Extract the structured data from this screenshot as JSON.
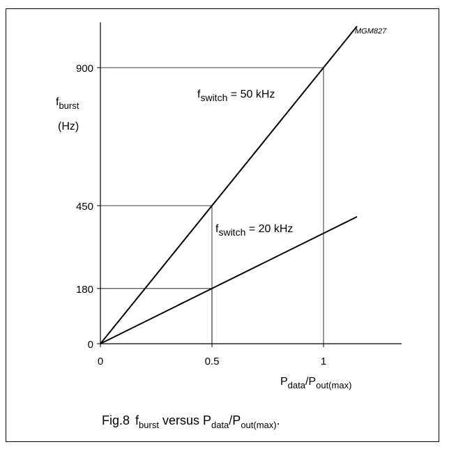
{
  "figure": {
    "code": "MGM827",
    "caption": {
      "prefix": "Fig.8",
      "f": "f",
      "burst": "burst",
      "versus": "versus",
      "P1": "P",
      "data": "data",
      "slash": "/P",
      "outmax": "out(max)",
      "period": "."
    }
  },
  "axes": {
    "y": {
      "f": "f",
      "sub": "burst",
      "unit": "(Hz)"
    },
    "x": {
      "P1": "P",
      "sub1": "data",
      "slash": "/P",
      "sub2": "out(max)"
    }
  },
  "chart_data": {
    "type": "line",
    "xlim": [
      0,
      1.35
    ],
    "ylim": [
      0,
      1000
    ],
    "x_ticks": [
      {
        "value": 0,
        "label": "0"
      },
      {
        "value": 0.5,
        "label": "0.5"
      },
      {
        "value": 1,
        "label": "1"
      }
    ],
    "y_ticks": [
      {
        "value": 0,
        "label": "0"
      },
      {
        "value": 180,
        "label": "180"
      },
      {
        "value": 450,
        "label": "450"
      },
      {
        "value": 900,
        "label": "900"
      }
    ],
    "series": [
      {
        "name": "f switch = 50 kHz",
        "label_parts": [
          "f",
          "switch",
          " = 50 kHz"
        ],
        "color": "#000000",
        "x": [
          0,
          1.15
        ],
        "y": [
          0,
          1035
        ]
      },
      {
        "name": "f switch = 20 kHz",
        "label_parts": [
          "f",
          "switch",
          " = 20 kHz"
        ],
        "color": "#000000",
        "x": [
          0,
          1.15
        ],
        "y": [
          0,
          414
        ]
      }
    ],
    "reference_lines": [
      {
        "x": 0.5,
        "y": 450
      },
      {
        "x": 0.5,
        "y": 180
      },
      {
        "x": 1,
        "y": 900
      }
    ],
    "grid": false
  }
}
